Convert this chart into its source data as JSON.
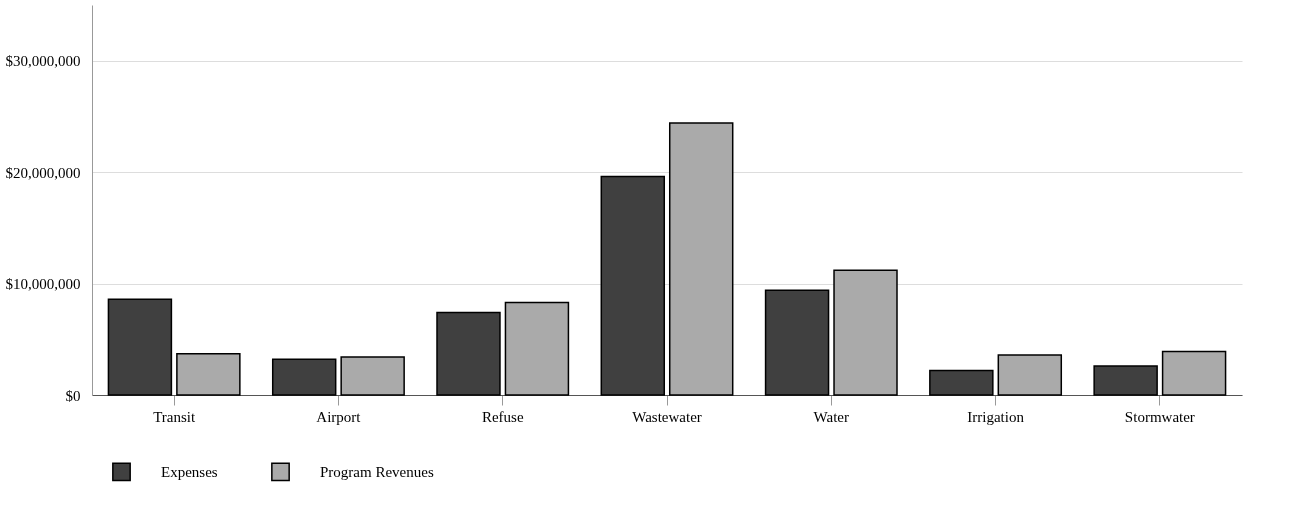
{
  "chart_data": {
    "type": "bar",
    "categories": [
      "Transit",
      "Airport",
      "Refuse",
      "Wastewater",
      "Water",
      "Irrigation",
      "Stormwater"
    ],
    "series": [
      {
        "name": "Expenses",
        "color": "#404040",
        "values": [
          8600000,
          3200000,
          7400000,
          19600000,
          9400000,
          2200000,
          2600000
        ]
      },
      {
        "name": "Program Revenues",
        "color": "#aaaaaa",
        "values": [
          3700000,
          3400000,
          8300000,
          24400000,
          11200000,
          3600000,
          3900000
        ]
      }
    ],
    "ylim": [
      0,
      35000000
    ],
    "yticks": [
      {
        "value": 0,
        "label": "$0"
      },
      {
        "value": 10000000,
        "label": "$10,000,000"
      },
      {
        "value": 20000000,
        "label": "$20,000,000"
      },
      {
        "value": 30000000,
        "label": "$30,000,000"
      }
    ],
    "grid": "y",
    "legend": "bottom"
  }
}
